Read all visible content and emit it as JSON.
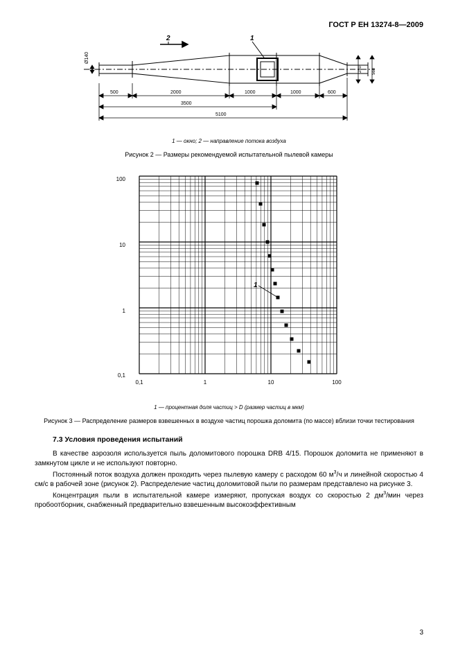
{
  "doc_code": "ГОСТ Р ЕН 13274-8—2009",
  "fig1": {
    "legend": "1 — окно; 2 — направление потока воздуха",
    "caption": "Рисунок 2 — Размеры рекомендуемой испытательной пылевой камеры",
    "dims": {
      "d1": "500",
      "d2": "2000",
      "d3": "1000",
      "d4": "1000",
      "d5": "600",
      "mid": "3500",
      "total": "5100",
      "dia_left": "Ø140",
      "h_right1": "280",
      "h_right2": "560"
    },
    "labels": {
      "l1": "1",
      "l2": "2"
    }
  },
  "chart": {
    "legend": "1 — процентная доля частиц > D (размер частиц в мкм)",
    "caption": "Рисунок 3 — Распределение размеров взвешенных в воздухе частиц порошка доломита (по массе) вблизи точки тестирования",
    "y_ticks": [
      "0,1",
      "1",
      "10",
      "100"
    ],
    "x_ticks": [
      "0,1",
      "1",
      "10",
      "100"
    ],
    "series_label": "1",
    "points": [
      {
        "x": 170,
        "y": 10
      },
      {
        "x": 175,
        "y": 40
      },
      {
        "x": 180,
        "y": 70
      },
      {
        "x": 185,
        "y": 95
      },
      {
        "x": 188,
        "y": 115
      },
      {
        "x": 192,
        "y": 135
      },
      {
        "x": 196,
        "y": 155
      },
      {
        "x": 200,
        "y": 175
      },
      {
        "x": 206,
        "y": 195
      },
      {
        "x": 212,
        "y": 215
      },
      {
        "x": 220,
        "y": 235
      },
      {
        "x": 230,
        "y": 252
      },
      {
        "x": 245,
        "y": 268
      }
    ],
    "colors": {
      "line": "#000000",
      "bg": "#ffffff"
    }
  },
  "section": {
    "head": "7.3 Условия проведения испытаний",
    "p1": "В качестве аэрозоля используется пыль доломитового порошка DRB 4/15. Порошок доломита не применяют в замкнутом цикле и не используют повторно.",
    "p2a": "Постоянный поток воздуха должен проходить через пылевую камеру с расходом 60 м",
    "p2b": "/ч и линейной скоростью 4 см/с в рабочей зоне (рисунок 2). Распределение частиц доломитовой пыли по размерам представлено на рисунке 3.",
    "p3a": "Концентрация пыли в испытательной камере измеряют, пропуская воздух со скоростью 2 дм",
    "p3b": "/мин через пробоотборник, снабженный предварительно взвешенным высокоэффективным"
  },
  "page_number": "3"
}
